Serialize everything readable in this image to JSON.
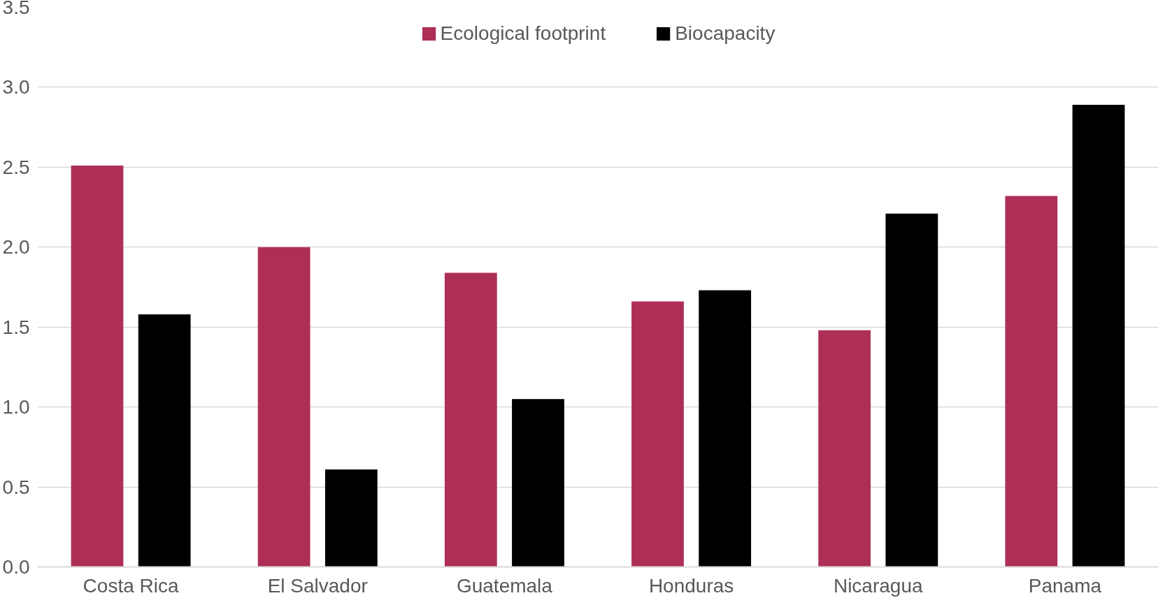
{
  "chart_data": {
    "type": "bar",
    "categories": [
      "Costa Rica",
      "El Salvador",
      "Guatemala",
      "Honduras",
      "Nicaragua",
      "Panama"
    ],
    "series": [
      {
        "name": "Ecological footprint",
        "color": "#ae2f56",
        "values": [
          2.51,
          2.0,
          1.84,
          1.66,
          1.48,
          2.32
        ]
      },
      {
        "name": "Biocapacity",
        "color": "#000000",
        "values": [
          1.58,
          0.61,
          1.05,
          1.73,
          2.21,
          2.89
        ]
      }
    ],
    "ylim": [
      0,
      3.5
    ],
    "yticks": [
      {
        "value": 0,
        "label": "0.0"
      },
      {
        "value": 0.5,
        "label": "0.5"
      },
      {
        "value": 1,
        "label": "1.0"
      },
      {
        "value": 1.5,
        "label": "1.5"
      },
      {
        "value": 2,
        "label": "2.0"
      },
      {
        "value": 2.5,
        "label": "2.5"
      },
      {
        "value": 3,
        "label": "3.0"
      },
      {
        "value": 3.5,
        "label": "3.5"
      }
    ],
    "grid": "y",
    "legend": "top"
  }
}
